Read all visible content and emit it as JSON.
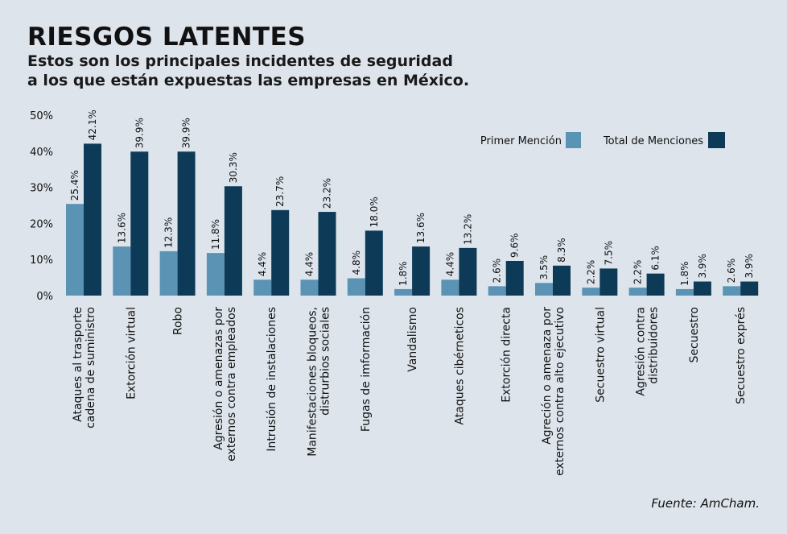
{
  "title": "RIESGOS LATENTES",
  "subtitle_line1": "Estos son los principales incidentes de seguridad",
  "subtitle_line2": "a los que están expuestas las empresas en México.",
  "source": "Fuente: AmCham.",
  "colors": {
    "primer": "#5b93b4",
    "total": "#0d3b57",
    "background": "#dde4ec"
  },
  "chart_data": {
    "type": "bar",
    "title": "RIESGOS LATENTES",
    "ylim": [
      0,
      50
    ],
    "yticks": [
      "0%",
      "10%",
      "20%",
      "30%",
      "40%",
      "50%"
    ],
    "legend_position": "top-right",
    "grid": false,
    "categories": [
      [
        "Ataques al trasporte",
        "cadena de suministro"
      ],
      [
        "Extorción virtual"
      ],
      [
        "Robo"
      ],
      [
        "Agresión o amenazas por",
        "externos contra empleados"
      ],
      [
        "Intrusión de instalaciones"
      ],
      [
        "Manifestaciones bloqueos,",
        "distrurbios sociales"
      ],
      [
        "Fugas de imformación"
      ],
      [
        "Vandalismo"
      ],
      [
        "Ataques cibérneticos"
      ],
      [
        "Extorción directa"
      ],
      [
        "Agreción o amenaza por",
        "externos contra alto ejecutivo"
      ],
      [
        "Secuestro virtual"
      ],
      [
        "Agresión contra",
        "distribuidores"
      ],
      [
        "Secuestro"
      ],
      [
        "Secuestro exprés"
      ]
    ],
    "series": [
      {
        "name": "Primer Mención",
        "values": [
          25.4,
          13.6,
          12.3,
          11.8,
          4.4,
          4.4,
          4.8,
          1.8,
          4.4,
          2.6,
          3.5,
          2.2,
          2.2,
          1.8,
          2.6
        ],
        "labels": [
          "25.4%",
          "13.6%",
          "12.3%",
          "11.8%",
          "4.4%",
          "4.4%",
          "4.8%",
          "1.8%",
          "4.4%",
          "2.6%",
          "3.5%",
          "2.2%",
          "2.2%",
          "1.8%",
          "2.6%"
        ]
      },
      {
        "name": "Total de Menciones",
        "values": [
          42.1,
          39.9,
          39.9,
          30.3,
          23.7,
          23.2,
          18.0,
          13.6,
          13.2,
          9.6,
          8.3,
          7.5,
          6.1,
          3.9,
          3.9
        ],
        "labels": [
          "42.1%",
          "39.9%",
          "39.9%",
          "30.3%",
          "23.7%",
          "23.2%",
          "18.0%",
          "13.6%",
          "13.2%",
          "9.6%",
          "8.3%",
          "7.5%",
          "6.1%",
          "3.9%",
          "3.9%"
        ]
      }
    ]
  }
}
